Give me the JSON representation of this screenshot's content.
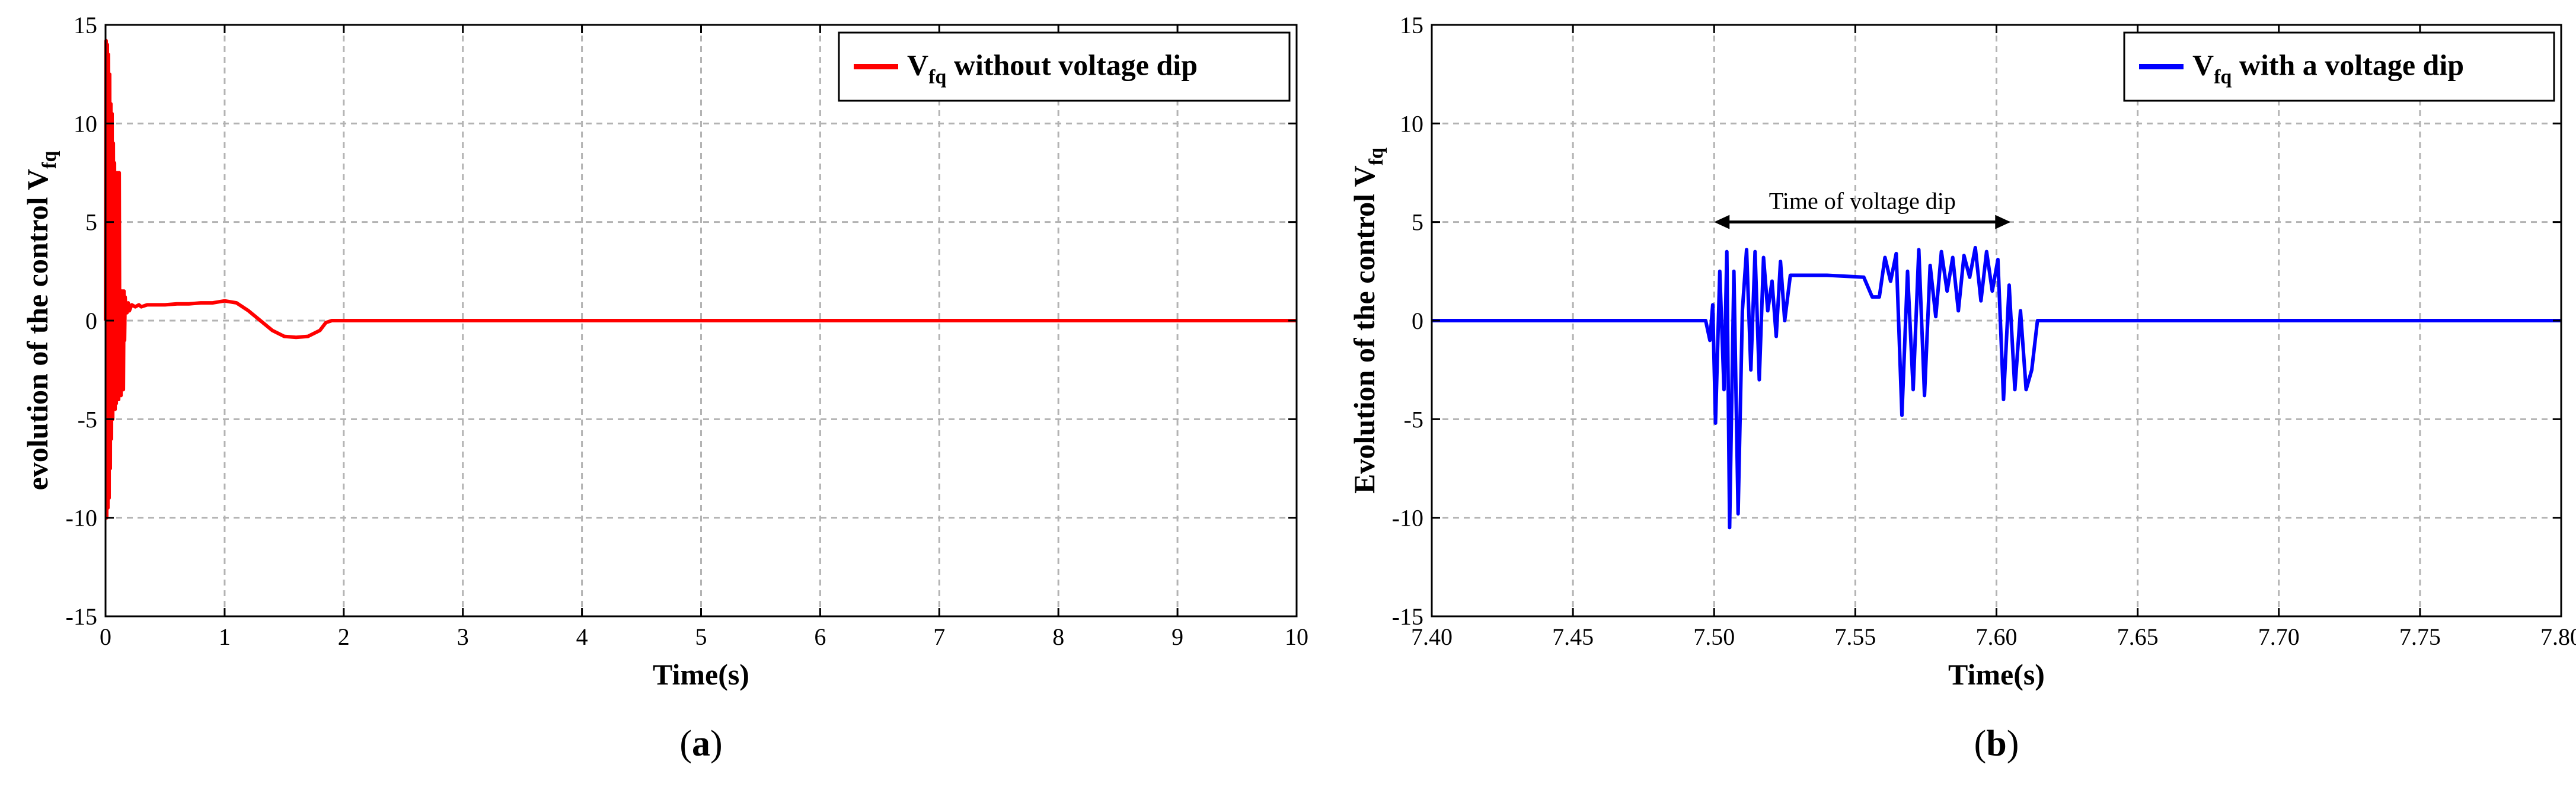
{
  "chart_data": [
    {
      "type": "line",
      "panel_label": "a",
      "xlabel": "Time(s)",
      "ylabel_main": "evolution of the control V",
      "ylabel_sub": "fq",
      "xlim": [
        0,
        10
      ],
      "ylim": [
        -15,
        15
      ],
      "x_ticks": [
        0,
        1,
        2,
        3,
        4,
        5,
        6,
        7,
        8,
        9,
        10
      ],
      "x_tick_labels": [
        "0",
        "1",
        "2",
        "3",
        "4",
        "5",
        "6",
        "7",
        "8",
        "9",
        "10"
      ],
      "y_ticks": [
        -15,
        -10,
        -5,
        0,
        5,
        10,
        15
      ],
      "y_tick_labels": [
        "-15",
        "-10",
        "-5",
        "0",
        "5",
        "10",
        "15"
      ],
      "grid": true,
      "legend_position": "top-right",
      "series": [
        {
          "name_main": "V",
          "name_sub": "fq",
          "name_rest": " without voltage dip",
          "color": "#ff0000",
          "x": [
            0,
            0.005,
            0.01,
            0.015,
            0.02,
            0.025,
            0.03,
            0.035,
            0.04,
            0.045,
            0.05,
            0.055,
            0.06,
            0.065,
            0.07,
            0.075,
            0.08,
            0.085,
            0.09,
            0.095,
            0.1,
            0.105,
            0.11,
            0.115,
            0.12,
            0.125,
            0.13,
            0.135,
            0.14,
            0.145,
            0.15,
            0.155,
            0.16,
            0.165,
            0.17,
            0.175,
            0.18,
            0.19,
            0.2,
            0.22,
            0.25,
            0.28,
            0.3,
            0.35,
            0.4,
            0.5,
            0.6,
            0.7,
            0.8,
            0.9,
            1.0,
            1.1,
            1.2,
            1.3,
            1.4,
            1.5,
            1.6,
            1.7,
            1.8,
            1.85,
            1.9,
            2.0,
            3,
            4,
            5,
            6,
            7,
            8,
            9,
            10
          ],
          "y": [
            0,
            14.2,
            -10,
            14,
            -9.5,
            13.5,
            -9,
            12.5,
            -7.5,
            11,
            -6,
            10.5,
            -5,
            9,
            -4.5,
            8,
            -4.5,
            7.5,
            -4.2,
            7.5,
            -4,
            7.5,
            -4,
            7.5,
            -3.8,
            1.5,
            -3.8,
            1.5,
            -3.5,
            1.5,
            -3.5,
            1.5,
            -1,
            1.2,
            0.5,
            0.8,
            0.4,
            0.9,
            0.5,
            0.8,
            0.7,
            0.8,
            0.7,
            0.8,
            0.8,
            0.8,
            0.85,
            0.85,
            0.9,
            0.9,
            1.0,
            0.9,
            0.5,
            0,
            -0.5,
            -0.8,
            -0.85,
            -0.8,
            -0.5,
            -0.1,
            0,
            0,
            0,
            0,
            0,
            0,
            0,
            0,
            0,
            0
          ]
        }
      ]
    },
    {
      "type": "line",
      "panel_label": "b",
      "xlabel": "Time(s)",
      "ylabel_main": "Evolution of the control V",
      "ylabel_sub": "fq",
      "xlim": [
        7.4,
        7.8
      ],
      "ylim": [
        -15,
        15
      ],
      "x_ticks": [
        7.4,
        7.45,
        7.5,
        7.55,
        7.6,
        7.65,
        7.7,
        7.75,
        7.8
      ],
      "x_tick_labels": [
        "7.40",
        "7.45",
        "7.50",
        "7.55",
        "7.60",
        "7.65",
        "7.70",
        "7.75",
        "7.80"
      ],
      "y_ticks": [
        -15,
        -10,
        -5,
        0,
        5,
        10,
        15
      ],
      "y_tick_labels": [
        "-15",
        "-10",
        "-5",
        "0",
        "5",
        "10",
        "15"
      ],
      "grid": true,
      "legend_position": "top-right",
      "annotation": {
        "text": "Time of voltage dip",
        "x_start": 7.5,
        "x_end": 7.605,
        "y": 5
      },
      "series": [
        {
          "name_main": "V",
          "name_sub": "fq",
          "name_rest": " with a voltage dip",
          "color": "#0000ff",
          "x": [
            7.4,
            7.497,
            7.4985,
            7.4995,
            7.5005,
            7.502,
            7.5035,
            7.5045,
            7.5055,
            7.507,
            7.5085,
            7.51,
            7.5115,
            7.513,
            7.5145,
            7.516,
            7.5175,
            7.519,
            7.5205,
            7.522,
            7.5235,
            7.525,
            7.527,
            7.54,
            7.553,
            7.556,
            7.5585,
            7.5605,
            7.5625,
            7.5645,
            7.5665,
            7.5685,
            7.5705,
            7.5725,
            7.5745,
            7.5765,
            7.5785,
            7.5805,
            7.5825,
            7.5845,
            7.5865,
            7.5885,
            7.5905,
            7.5925,
            7.5945,
            7.5965,
            7.5985,
            7.6005,
            7.6025,
            7.6045,
            7.6065,
            7.6085,
            7.6105,
            7.6125,
            7.6145,
            7.8
          ],
          "y": [
            0,
            0,
            -1,
            0.8,
            -5.2,
            2.5,
            -3.5,
            3.5,
            -10.5,
            2.5,
            -9.8,
            0.5,
            3.6,
            -2.5,
            3.5,
            -3,
            3.2,
            0.5,
            2,
            -0.8,
            3,
            0,
            2.3,
            2.3,
            2.2,
            1.2,
            1.2,
            3.2,
            2,
            3.4,
            -4.8,
            2.5,
            -3.5,
            3.6,
            -3.8,
            2.8,
            0.2,
            3.5,
            1.5,
            3.2,
            0.5,
            3.3,
            2.2,
            3.7,
            1,
            3.5,
            1.5,
            3.1,
            -4,
            1.8,
            -3.5,
            0.5,
            -3.5,
            -2.5,
            0,
            0
          ]
        }
      ]
    }
  ]
}
